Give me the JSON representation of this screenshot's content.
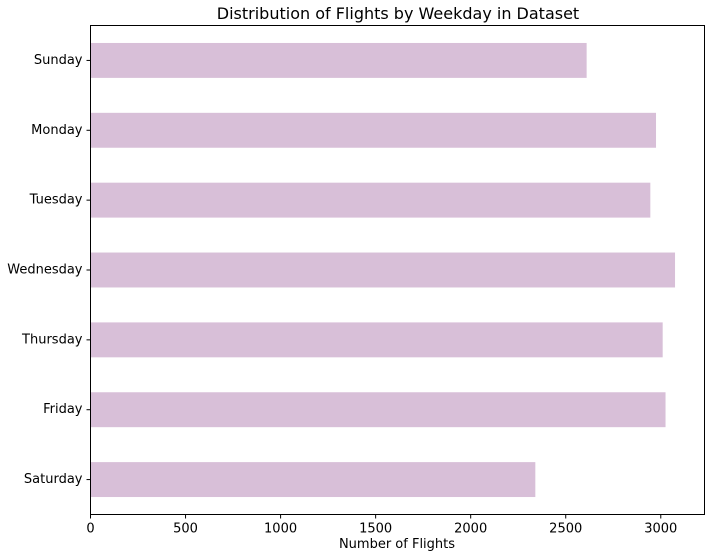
{
  "chart_data": {
    "type": "bar",
    "orientation": "horizontal",
    "title": "Distribution of Flights by Weekday in Dataset",
    "xlabel": "Number of Flights",
    "ylabel": "",
    "categories": [
      "Sunday",
      "Monday",
      "Tuesday",
      "Wednesday",
      "Thursday",
      "Friday",
      "Saturday"
    ],
    "values": [
      2610,
      2975,
      2945,
      3075,
      3010,
      3025,
      2340
    ],
    "xlim": [
      0,
      3230
    ],
    "xticks": [
      0,
      500,
      1000,
      1500,
      2000,
      2500,
      3000
    ],
    "bar_color": "#d8bfd8",
    "grid": false
  }
}
